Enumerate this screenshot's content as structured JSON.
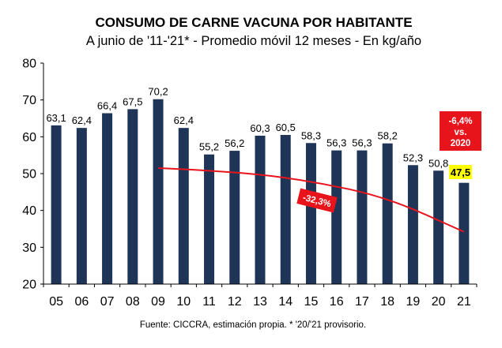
{
  "chart_data": {
    "type": "bar",
    "title": "CONSUMO DE CARNE VACUNA POR HABITANTE",
    "subtitle": "A junio de '11-'21* - Promedio móvil 12 meses -  En kg/año",
    "categories": [
      "05",
      "06",
      "07",
      "08",
      "09",
      "10",
      "11",
      "12",
      "13",
      "14",
      "15",
      "16",
      "17",
      "18",
      "19",
      "20",
      "21"
    ],
    "values": [
      63.1,
      62.4,
      66.4,
      67.5,
      70.2,
      62.4,
      55.2,
      56.2,
      60.3,
      60.5,
      58.3,
      56.3,
      56.3,
      58.2,
      52.3,
      50.8,
      47.5
    ],
    "value_labels": [
      "63,1",
      "62,4",
      "66,4",
      "67,5",
      "70,2",
      "62,4",
      "55,2",
      "56,2",
      "60,3",
      "60,5",
      "58,3",
      "56,3",
      "56,3",
      "58,2",
      "52,3",
      "50,8",
      "47,5"
    ],
    "highlight_label": "47,5",
    "ylim": [
      20,
      80
    ],
    "yticks": [
      "20",
      "30",
      "40",
      "50",
      "60",
      "70",
      "80"
    ],
    "trend": {
      "description": "red curve from 09 to 21",
      "points": [
        [
          4,
          51.5
        ],
        [
          7,
          50.6
        ],
        [
          10,
          48.0
        ],
        [
          13,
          43.5
        ],
        [
          16,
          34.2
        ]
      ],
      "color": "#e8141c"
    },
    "annotations": {
      "trend_change": "-32,3%",
      "yoy_line1": "-6,4%",
      "yoy_line2": "vs.",
      "yoy_line3": "2020"
    },
    "colors": {
      "bar": "#1f3557",
      "accent": "#e8141c",
      "highlight": "#ffff00"
    },
    "source": "Fuente: CICCRA, estimación propia. * '20/'21 provisorio."
  }
}
